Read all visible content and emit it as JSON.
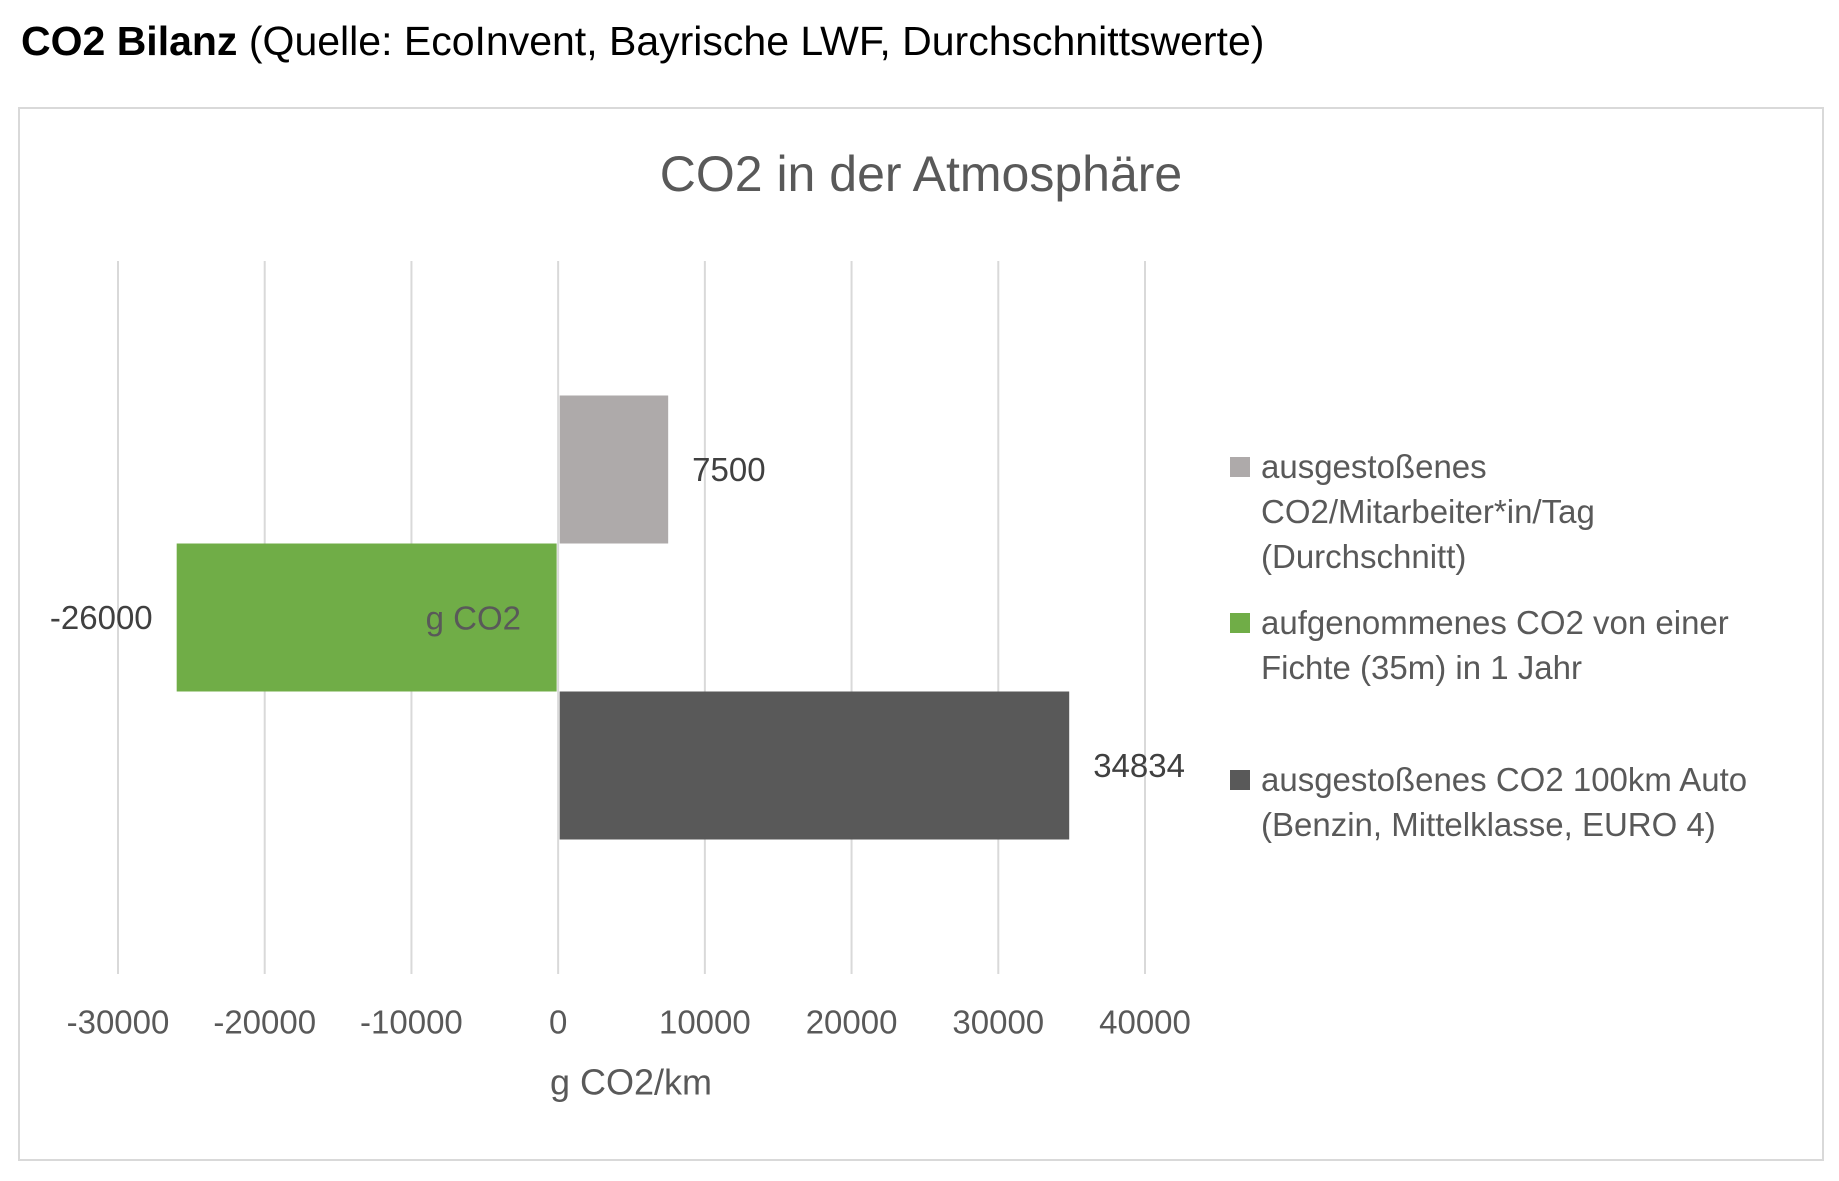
{
  "header": {
    "title": "CO2 Bilanz",
    "source": "(Quelle: EcoInvent, Bayrische LWF, Durchschnittswerte)"
  },
  "chart_data": {
    "type": "bar",
    "orientation": "horizontal",
    "title": "CO2 in der Atmosphäre",
    "xlabel": "g CO2/km",
    "categories": [
      "g CO2"
    ],
    "series": [
      {
        "name": "ausgestoßenes CO2/Mitarbeiter*in/Tag (Durchschnitt)",
        "values": [
          7500
        ],
        "color": "#AEAAAA"
      },
      {
        "name": "aufgenommenes CO2 von einer Fichte (35m) in 1 Jahr",
        "values": [
          -26000
        ],
        "color": "#70AD47"
      },
      {
        "name": "ausgestoßenes CO2 100km Auto (Benzin, Mittelklasse, EURO 4)",
        "values": [
          34834
        ],
        "color": "#595959"
      }
    ],
    "xlim": [
      -30000,
      40000
    ],
    "xticks": [
      -30000,
      -20000,
      -10000,
      0,
      10000,
      20000,
      30000,
      40000
    ],
    "data_labels": true,
    "grid": true,
    "legend": "right"
  }
}
